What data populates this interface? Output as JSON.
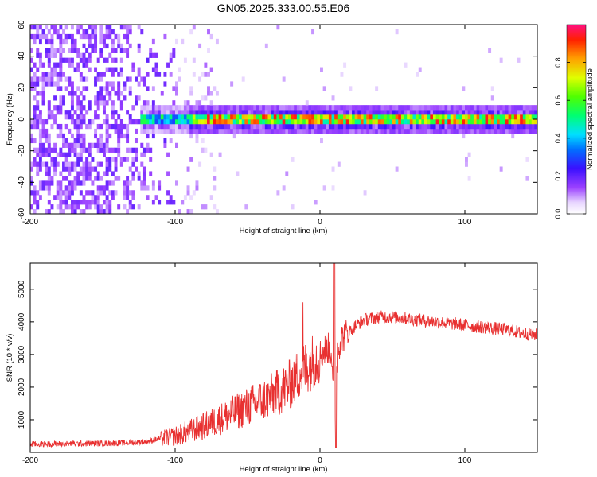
{
  "title": "GN05.2025.333.00.55.E06",
  "chart_data": [
    {
      "type": "heatmap",
      "xlabel": "Height of straight line (km)",
      "ylabel": "Frequency (Hz)",
      "xlim": [
        -200,
        150
      ],
      "ylim": [
        -60,
        60
      ],
      "x_ticks": [
        "-200",
        "-100",
        "0",
        "100"
      ],
      "y_ticks": [
        "-60",
        "-40",
        "-20",
        "0",
        "20",
        "40",
        "60"
      ],
      "colorbar": {
        "label": "Normalized spectral amplitude",
        "range": [
          0,
          1
        ],
        "ticks": [
          "0.0",
          "0.2",
          "0.4",
          "0.6",
          "0.8"
        ]
      },
      "description_regions": {
        "noise_until_km": -100,
        "signal_band_center_hz": 0,
        "signal_band_halfwidth_hz": 4
      }
    },
    {
      "type": "line",
      "xlabel": "Height of straight line (km)",
      "ylabel": "SNR (10 * v/v)",
      "xlim": [
        -200,
        150
      ],
      "ylim": [
        0,
        5800
      ],
      "x_ticks": [
        "-200",
        "-100",
        "0",
        "100"
      ],
      "y_ticks": [
        "1000",
        "2000",
        "3000",
        "4000",
        "5000"
      ],
      "series": [
        {
          "name": "SNR",
          "color": "#e83030",
          "x": [
            -200,
            -180,
            -160,
            -140,
            -130,
            -120,
            -110,
            -100,
            -90,
            -80,
            -70,
            -60,
            -50,
            -40,
            -30,
            -20,
            -15,
            -10,
            -5,
            0,
            5,
            8,
            10,
            12,
            15,
            20,
            25,
            30,
            40,
            50,
            60,
            70,
            80,
            90,
            100,
            110,
            120,
            130,
            140,
            150
          ],
          "y": [
            250,
            260,
            270,
            280,
            300,
            330,
            420,
            500,
            650,
            800,
            1000,
            1200,
            1400,
            1600,
            1800,
            2100,
            2400,
            2600,
            2800,
            3000,
            3200,
            3100,
            400,
            3200,
            3500,
            3700,
            3900,
            4050,
            4150,
            4150,
            4100,
            4050,
            4000,
            3950,
            3900,
            3850,
            3800,
            3750,
            3650,
            3600
          ]
        }
      ]
    }
  ]
}
